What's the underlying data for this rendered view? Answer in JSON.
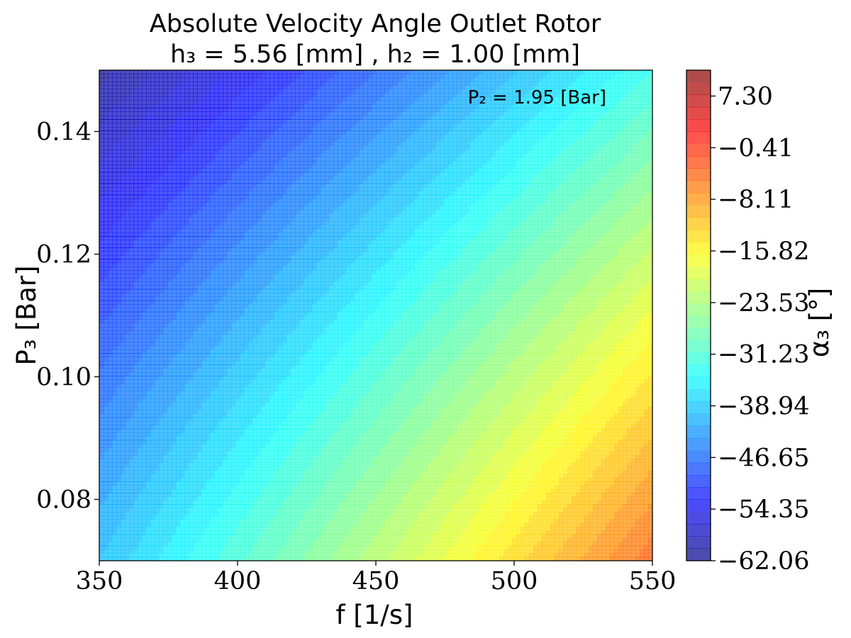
{
  "chart_data": {
    "type": "contour",
    "title": {
      "line1": "Absolute Velocity Angle Outlet Rotor",
      "line2": "h₃ = 5.56 [mm] , h₂ = 1.00 [mm]"
    },
    "annotation": "P₂ = 1.95 [Bar]",
    "xlabel": "f  [1/s]",
    "ylabel": "P₃ [Bar]",
    "xlim": [
      350,
      550
    ],
    "ylim": [
      0.07,
      0.15
    ],
    "x_ticks": [
      350,
      400,
      450,
      500,
      550
    ],
    "x_tick_labels": [
      "350",
      "400",
      "450",
      "500",
      "550"
    ],
    "y_ticks": [
      0.08,
      0.1,
      0.12,
      0.14
    ],
    "y_tick_labels": [
      "0.08",
      "0.10",
      "0.12",
      "0.14"
    ],
    "colorbar": {
      "label": "α₃ [°]",
      "range": [
        -62.06,
        11.16
      ],
      "levels": 40,
      "ticks": [
        -62.06,
        -54.35,
        -46.65,
        -38.94,
        -31.23,
        -23.53,
        -15.82,
        -8.11,
        -0.41,
        7.3
      ],
      "tick_labels": [
        "−62.06",
        "−54.35",
        "−46.65",
        "−38.94",
        "−31.23",
        "−23.53",
        "−15.82",
        "−8.11",
        "−0.41",
        "7.30"
      ]
    },
    "colormap": "jet",
    "alpha": 0.7,
    "grid": false,
    "field_samples": [
      {
        "f": 350,
        "P3": 0.15,
        "alpha3": -61
      },
      {
        "f": 350,
        "P3": 0.11,
        "alpha3": -55
      },
      {
        "f": 350,
        "P3": 0.07,
        "alpha3": -37
      },
      {
        "f": 450,
        "P3": 0.15,
        "alpha3": -44
      },
      {
        "f": 450,
        "P3": 0.07,
        "alpha3": -30
      },
      {
        "f": 550,
        "P3": 0.15,
        "alpha3": -23
      },
      {
        "f": 550,
        "P3": 0.07,
        "alpha3": -4
      }
    ]
  }
}
